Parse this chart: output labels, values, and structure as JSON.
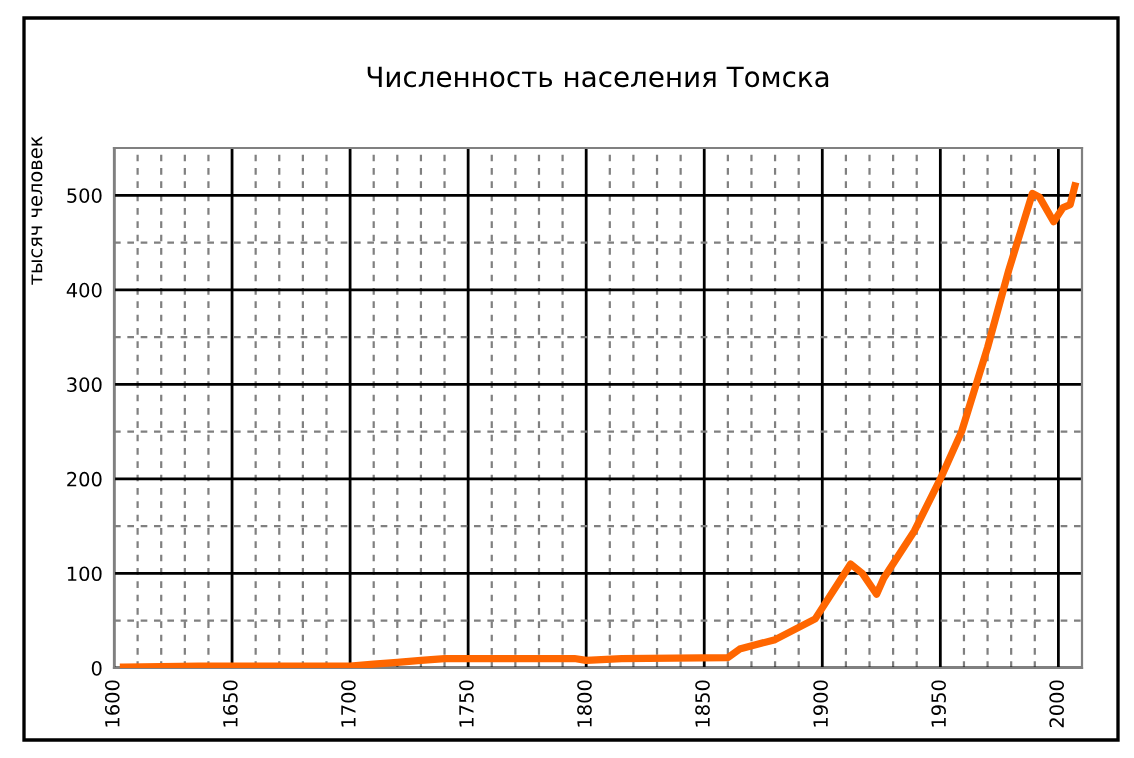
{
  "chart_data": {
    "type": "line",
    "title": "Численность населения Томска",
    "ylabel": "тысяч человек",
    "x": [
      1604,
      1636,
      1700,
      1710,
      1720,
      1730,
      1740,
      1795,
      1800,
      1815,
      1860,
      1865,
      1880,
      1897,
      1912,
      1917,
      1923,
      1926,
      1939,
      1950,
      1959,
      1970,
      1979,
      1989,
      1992,
      1998,
      2002,
      2005,
      2007
    ],
    "series": [
      {
        "color": "#ff6600",
        "values": [
          1,
          2,
          2,
          4,
          6,
          8,
          10,
          10,
          8,
          10,
          11,
          20,
          30,
          52,
          110,
          100,
          78,
          95,
          145,
          200,
          250,
          339,
          421,
          502,
          498,
          472,
          487,
          490,
          510
        ]
      }
    ],
    "xlim": [
      1600,
      2010
    ],
    "ylim": [
      0,
      550
    ],
    "xticks": [
      1600,
      {
        "value": 1610,
        "label": null
      },
      {
        "value": 1620,
        "label": null
      },
      {
        "value": 1630,
        "label": null
      },
      {
        "value": 1640,
        "label": null
      },
      1650,
      {
        "value": 1660,
        "label": null
      },
      {
        "value": 1670,
        "label": null
      },
      {
        "value": 1680,
        "label": null
      },
      {
        "value": 1690,
        "label": null
      },
      1700,
      {
        "value": 1710,
        "label": null
      },
      {
        "value": 1720,
        "label": null
      },
      {
        "value": 1730,
        "label": null
      },
      {
        "value": 1740,
        "label": null
      },
      1750,
      {
        "value": 1760,
        "label": null
      },
      {
        "value": 1770,
        "label": null
      },
      {
        "value": 1780,
        "label": null
      },
      {
        "value": 1790,
        "label": null
      },
      1800,
      {
        "value": 1810,
        "label": null
      },
      {
        "value": 1820,
        "label": null
      },
      {
        "value": 1830,
        "label": null
      },
      {
        "value": 1840,
        "label": null
      },
      1850,
      {
        "value": 1860,
        "label": null
      },
      {
        "value": 1870,
        "label": null
      },
      {
        "value": 1880,
        "label": null
      },
      {
        "value": 1890,
        "label": null
      },
      1900,
      {
        "value": 1910,
        "label": null
      },
      {
        "value": 1920,
        "label": null
      },
      {
        "value": 1930,
        "label": null
      },
      {
        "value": 1940,
        "label": null
      },
      1950,
      {
        "value": 1960,
        "label": null
      },
      {
        "value": 1970,
        "label": null
      },
      {
        "value": 1980,
        "label": null
      },
      {
        "value": 1990,
        "label": null
      },
      2000
    ],
    "yticks": [
      0,
      {
        "value": 50,
        "label": null
      },
      100,
      {
        "value": 150,
        "label": null
      },
      200,
      {
        "value": 250,
        "label": null
      },
      300,
      {
        "value": 350,
        "label": null
      },
      400,
      {
        "value": 450,
        "label": null
      },
      500
    ],
    "grid": true,
    "marker": "none",
    "line_style": "solid"
  }
}
